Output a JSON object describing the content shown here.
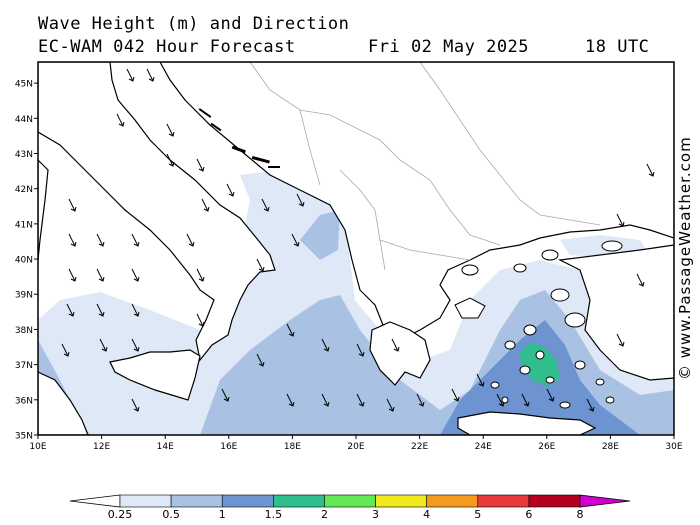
{
  "header": {
    "line1": "Wave Height (m) and Direction",
    "line2": "EC-WAM 042 Hour Forecast",
    "date": "Fri 02 May 2025",
    "time": "18 UTC"
  },
  "credit": "© www.PassageWeather.com",
  "axes": {
    "lat_labels": [
      "45N",
      "44N",
      "43N",
      "42N",
      "41N",
      "40N",
      "39N",
      "38N",
      "37N",
      "36N",
      "35N"
    ],
    "lon_labels": [
      "10E",
      "12E",
      "14E",
      "16E",
      "18E",
      "20E",
      "22E",
      "24E",
      "26E",
      "28E",
      "30E"
    ],
    "lon_range": [
      10,
      30
    ],
    "lat_range": [
      35,
      45.6
    ]
  },
  "legend": {
    "ticks": [
      "0.25",
      "0.5",
      "1",
      "1.5",
      "2",
      "3",
      "4",
      "5",
      "6",
      "8"
    ],
    "colors": [
      "#ffffff",
      "#dfe8f6",
      "#a9c2e4",
      "#6d94d0",
      "#2fbe8c",
      "#63e855",
      "#f0e81c",
      "#f49b1d",
      "#e83a3a",
      "#b4001c",
      "#d000d0"
    ]
  },
  "colors": {
    "land": "#ffffff",
    "coast": "#000000",
    "borders": "#aaaaaa",
    "wave_low": "#dfe8f6",
    "wave_mid": "#a9c2e4",
    "wave_high": "#6d94d0",
    "wave_peak": "#2fbe8c"
  }
}
